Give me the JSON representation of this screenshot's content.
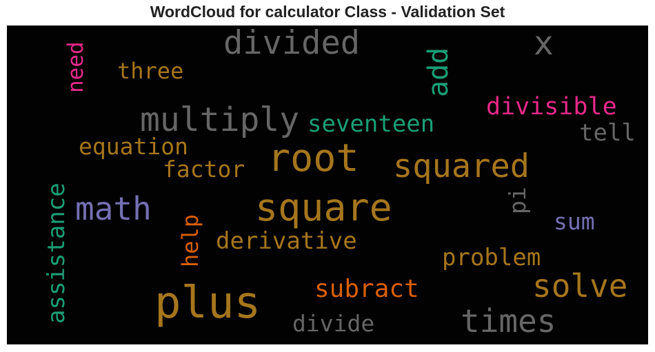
{
  "chart_data": {
    "type": "wordcloud",
    "title": "WordCloud for calculator Class - Validation Set",
    "background": "#020202",
    "palette": {
      "gold": "#a6761d",
      "gray": "#666666",
      "teal": "#1b9e77",
      "pink": "#e7298a",
      "orange": "#d95f02",
      "purple": "#7570b3"
    },
    "words": [
      {
        "text": "plus",
        "color": "#a6761d",
        "vertical": false
      },
      {
        "text": "root",
        "color": "#a6761d",
        "vertical": false
      },
      {
        "text": "square",
        "color": "#a6761d",
        "vertical": false
      },
      {
        "text": "times",
        "color": "#666666",
        "vertical": false
      },
      {
        "text": "solve",
        "color": "#a6761d",
        "vertical": false
      },
      {
        "text": "squared",
        "color": "#a6761d",
        "vertical": false
      },
      {
        "text": "multiply",
        "color": "#666666",
        "vertical": false
      },
      {
        "text": "math",
        "color": "#7570b3",
        "vertical": false
      },
      {
        "text": "divided",
        "color": "#666666",
        "vertical": false
      },
      {
        "text": "x",
        "color": "#666666",
        "vertical": false
      },
      {
        "text": "add",
        "color": "#1b9e77",
        "vertical": true
      },
      {
        "text": "assistance",
        "color": "#1b9e77",
        "vertical": true
      },
      {
        "text": "subract",
        "color": "#d95f02",
        "vertical": false
      },
      {
        "text": "problem",
        "color": "#a6761d",
        "vertical": false
      },
      {
        "text": "derivative",
        "color": "#a6761d",
        "vertical": false
      },
      {
        "text": "seventeen",
        "color": "#1b9e77",
        "vertical": false
      },
      {
        "text": "divisible",
        "color": "#e7298a",
        "vertical": false
      },
      {
        "text": "equation",
        "color": "#a6761d",
        "vertical": false
      },
      {
        "text": "factor",
        "color": "#a6761d",
        "vertical": false
      },
      {
        "text": "divide",
        "color": "#666666",
        "vertical": false
      },
      {
        "text": "three",
        "color": "#a6761d",
        "vertical": false
      },
      {
        "text": "need",
        "color": "#e7298a",
        "vertical": true
      },
      {
        "text": "help",
        "color": "#d95f02",
        "vertical": true
      },
      {
        "text": "tell",
        "color": "#666666",
        "vertical": false
      },
      {
        "text": "sum",
        "color": "#7570b3",
        "vertical": false
      },
      {
        "text": "pi",
        "color": "#666666",
        "vertical": true
      }
    ]
  }
}
